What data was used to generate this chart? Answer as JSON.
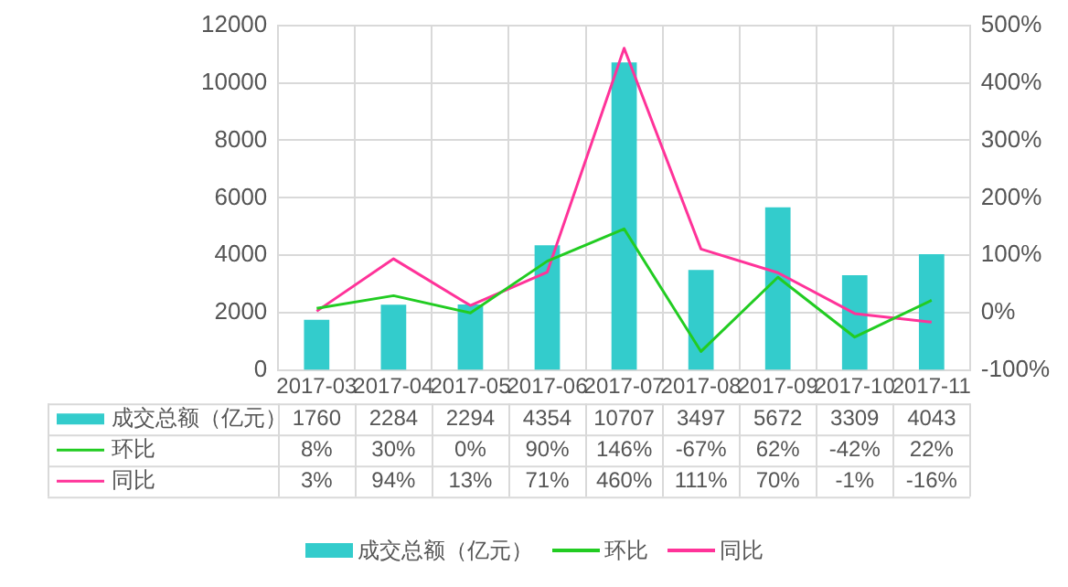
{
  "chart_data": {
    "type": "bar",
    "categories": [
      "2017-03",
      "2017-04",
      "2017-05",
      "2017-06",
      "2017-07",
      "2017-08",
      "2017-09",
      "2017-10",
      "2017-11"
    ],
    "series": [
      {
        "name": "成交总额（亿元）",
        "color": "#33cccc",
        "values": [
          1760,
          2284,
          2294,
          4354,
          10707,
          3497,
          5672,
          3309,
          4043
        ],
        "value_labels": [
          "1760",
          "2284",
          "2294",
          "4354",
          "10707",
          "3497",
          "5672",
          "3309",
          "4043"
        ]
      },
      {
        "name": "环比",
        "type": "line",
        "axis": "y2",
        "color": "#22cc22",
        "values": [
          8,
          30,
          0,
          90,
          146,
          -67,
          62,
          -42,
          22
        ],
        "value_labels": [
          "8%",
          "30%",
          "0%",
          "90%",
          "146%",
          "-67%",
          "62%",
          "-42%",
          "22%"
        ]
      },
      {
        "name": "同比",
        "type": "line",
        "axis": "y2",
        "color": "#ff3399",
        "values": [
          3,
          94,
          13,
          71,
          460,
          111,
          70,
          -1,
          -16
        ],
        "value_labels": [
          "3%",
          "94%",
          "13%",
          "71%",
          "460%",
          "111%",
          "70%",
          "-1%",
          "-16%"
        ]
      }
    ],
    "ylim": [
      0,
      12000
    ],
    "yticks": [
      0,
      2000,
      4000,
      6000,
      8000,
      10000,
      12000
    ],
    "y2lim": [
      -100,
      500
    ],
    "y2ticks": [
      {
        "value": -100,
        "label": "-100%"
      },
      {
        "value": 0,
        "label": "0%"
      },
      {
        "value": 100,
        "label": "100%"
      },
      {
        "value": 200,
        "label": "200%"
      },
      {
        "value": 300,
        "label": "300%"
      },
      {
        "value": 400,
        "label": "400%"
      },
      {
        "value": 500,
        "label": "500%"
      }
    ],
    "grid": true,
    "legend": "bottom",
    "marker": "none",
    "line_style": "solid"
  }
}
